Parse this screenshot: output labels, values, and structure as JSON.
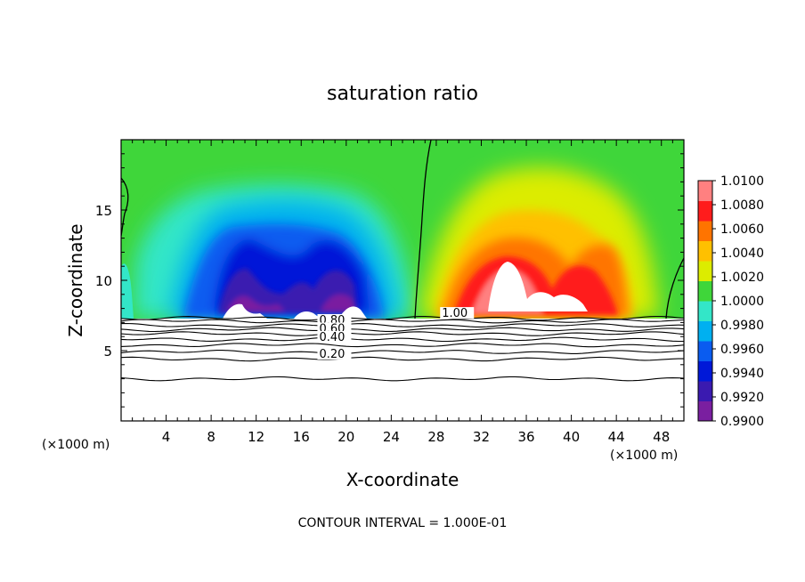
{
  "chart_data": {
    "type": "heatmap",
    "title": "saturation ratio",
    "xlabel": "X-coordinate",
    "ylabel": "Z-coordinate",
    "x_unit_left": "(×1000 m)",
    "x_unit_right": "(×1000 m)",
    "xlim": [
      0,
      50
    ],
    "ylim": [
      0,
      20
    ],
    "x_ticks": [
      4,
      8,
      12,
      16,
      20,
      24,
      28,
      32,
      36,
      40,
      44,
      48
    ],
    "x_tick_labels": [
      "4",
      "8",
      "12",
      "16",
      "20",
      "24",
      "28",
      "32",
      "36",
      "40",
      "44",
      "48"
    ],
    "y_ticks": [
      5,
      10,
      15
    ],
    "y_tick_labels": [
      "5",
      "10",
      "15"
    ],
    "colorbar": {
      "min": 0.99,
      "max": 1.01,
      "tick_labels": [
        "1.0100",
        "1.0080",
        "1.0060",
        "1.0040",
        "1.0020",
        "1.0000",
        "0.9980",
        "0.9960",
        "0.9940",
        "0.9920",
        "0.9900"
      ],
      "colors": [
        "#7a1fa0",
        "#3a1ab0",
        "#0018d8",
        "#0a5cf0",
        "#00b0f0",
        "#33e6c8",
        "#3fd63a",
        "#dcec00",
        "#ffc000",
        "#ff7400",
        "#ff1c1c",
        "#ff8080"
      ]
    },
    "contour_labels": [
      {
        "text": "0.80",
        "x": 17.6,
        "z": 6.9
      },
      {
        "text": "0.60",
        "x": 17.6,
        "z": 6.3
      },
      {
        "text": "0.40",
        "x": 17.6,
        "z": 5.7
      },
      {
        "text": "0.20",
        "x": 17.6,
        "z": 4.5
      },
      {
        "text": "1.00",
        "x": 28.5,
        "z": 7.4
      }
    ],
    "contour_lines_z": [
      7.1,
      6.8,
      6.5,
      6.2,
      5.8,
      5.4,
      4.9,
      4.4,
      3.0
    ],
    "boundary_z": 7.3,
    "contour_interval_text": "CONTOUR INTERVAL = 1.000E-01"
  }
}
